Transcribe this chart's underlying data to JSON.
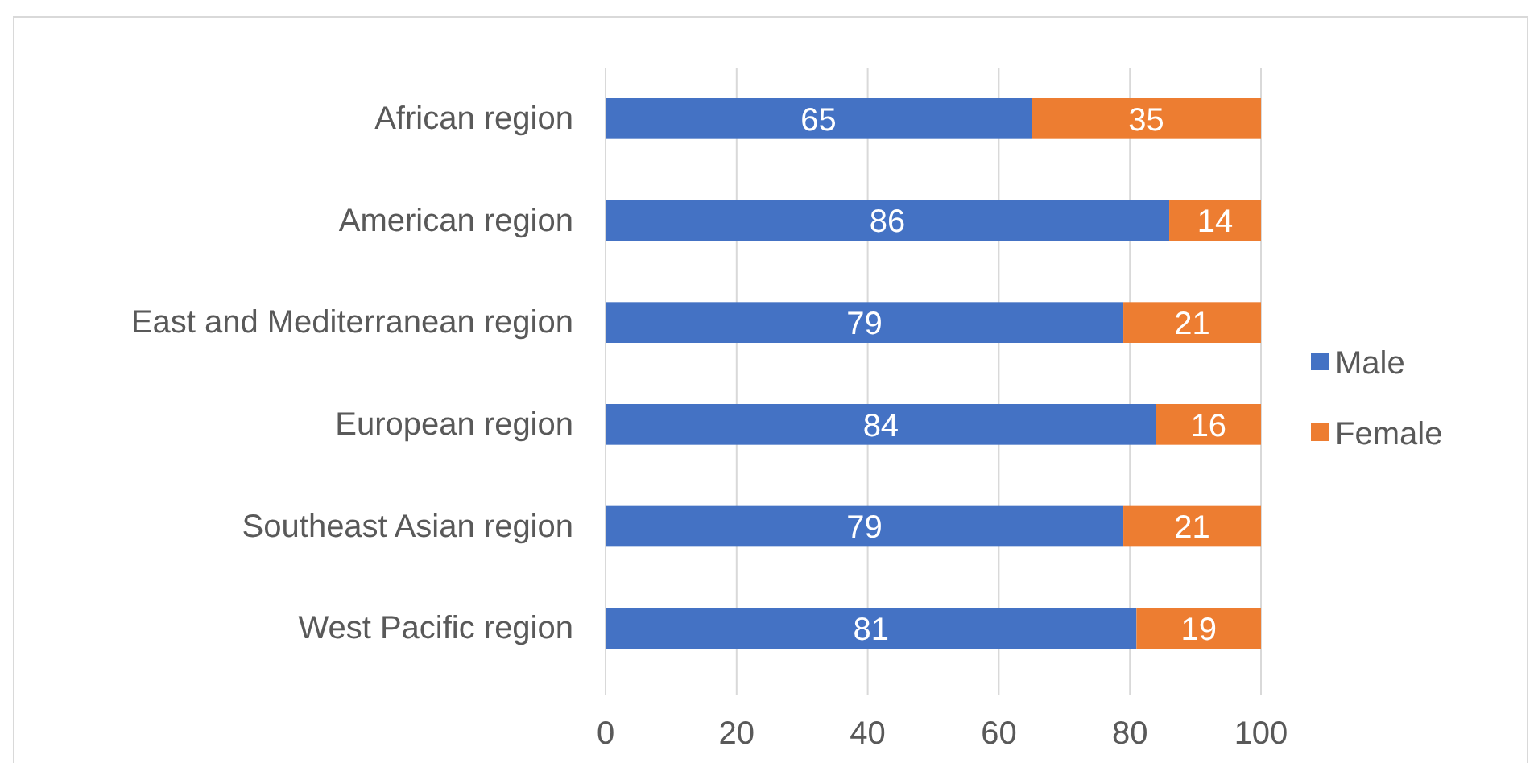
{
  "chart_data": {
    "type": "bar",
    "orientation": "horizontal",
    "stacked": true,
    "categories": [
      "African region",
      "American region",
      "East and Mediterranean region",
      "European region",
      "Southeast Asian region",
      "West Pacific region"
    ],
    "series": [
      {
        "name": "Male",
        "color": "#4472c4",
        "values": [
          65,
          86,
          79,
          84,
          79,
          81
        ]
      },
      {
        "name": "Female",
        "color": "#ed7d31",
        "values": [
          35,
          14,
          21,
          16,
          21,
          19
        ]
      }
    ],
    "xlim": [
      0,
      100
    ],
    "xticks": [
      0,
      20,
      40,
      60,
      80,
      100
    ],
    "grid": "x",
    "legend": "right",
    "data_labels": true
  }
}
